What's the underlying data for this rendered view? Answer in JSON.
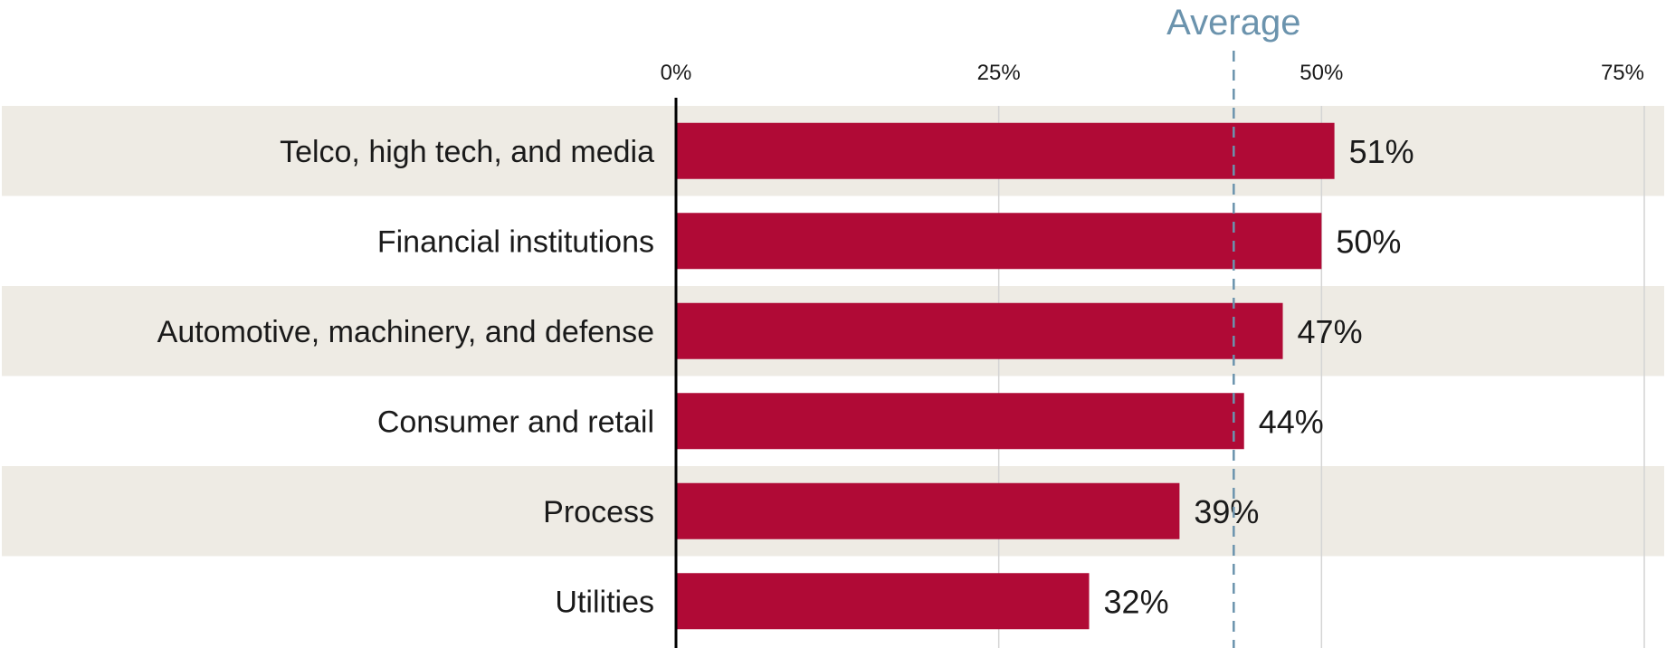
{
  "chart_data": {
    "type": "bar",
    "orientation": "horizontal",
    "title": "",
    "xlabel": "",
    "ylabel": "",
    "categories": [
      "Telco, high tech, and media",
      "Financial institutions",
      "Automotive, machinery, and defense",
      "Consumer and retail",
      "Process",
      "Utilities"
    ],
    "values": [
      51,
      50,
      47,
      44,
      39,
      32
    ],
    "value_labels": [
      "51%",
      "50%",
      "47%",
      "44%",
      "39%",
      "32%"
    ],
    "xlim": [
      0,
      75
    ],
    "x_ticks": [
      0,
      25,
      50,
      75
    ],
    "x_tick_labels": [
      "0%",
      "25%",
      "50%",
      "75%"
    ],
    "grid": true,
    "row_banding": true,
    "reference_line": {
      "label": "Average",
      "value": 43.2,
      "style": "dashed"
    },
    "colors": {
      "bar": "#b00a36",
      "band": "#eeebe4",
      "grid": "#d4d4d4",
      "axis": "#000000",
      "average": "#6b93ad",
      "text": "#1a1a1a"
    }
  }
}
